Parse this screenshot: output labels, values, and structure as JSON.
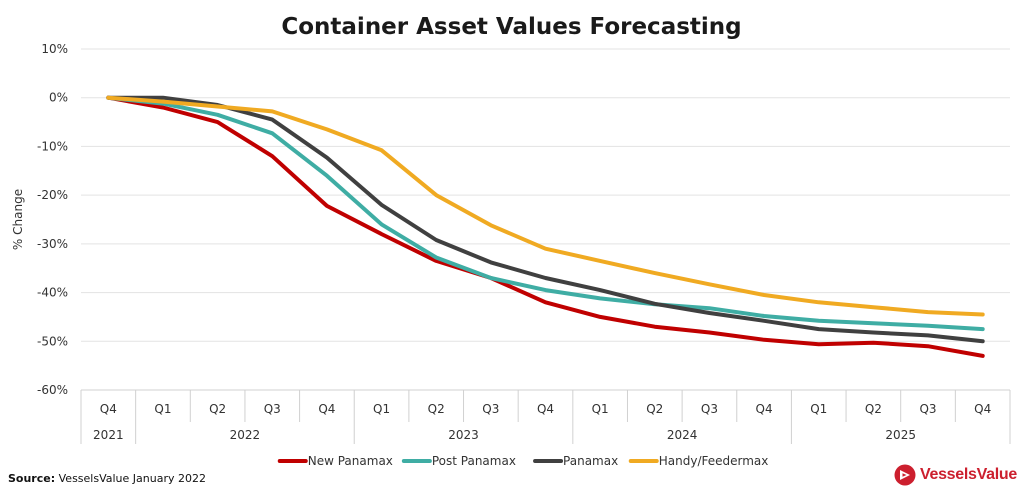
{
  "chart_data": {
    "type": "line",
    "title": "Container Asset Values Forecasting",
    "ylabel": "% Change",
    "xlabel": "",
    "ylim": [
      -60,
      10
    ],
    "y_ticks": [
      10,
      0,
      -10,
      -20,
      -30,
      -40,
      -50,
      -60
    ],
    "y_tick_labels": [
      "10%",
      "0%",
      "-10%",
      "-20%",
      "-30%",
      "-40%",
      "-50%",
      "-60%"
    ],
    "grid": true,
    "legend_position": "bottom",
    "categories": [
      "Q4",
      "Q1",
      "Q2",
      "Q3",
      "Q4",
      "Q1",
      "Q2",
      "Q3",
      "Q4",
      "Q1",
      "Q2",
      "Q3",
      "Q4",
      "Q1",
      "Q2",
      "Q3",
      "Q4"
    ],
    "year_groups": [
      {
        "label": "2021",
        "span": 1
      },
      {
        "label": "2022",
        "span": 4
      },
      {
        "label": "2023",
        "span": 4
      },
      {
        "label": "2024",
        "span": 4
      },
      {
        "label": "2025",
        "span": 4
      }
    ],
    "series": [
      {
        "name": "New Panamax",
        "color": "#c00000",
        "values": [
          0,
          -2,
          -5,
          -12,
          -22.2,
          -28,
          -33.5,
          -37,
          -42,
          -45,
          -47,
          -48.2,
          -49.7,
          -50.6,
          -50.3,
          -51,
          -53
        ]
      },
      {
        "name": "Post Panamax",
        "color": "#3fada4",
        "values": [
          0,
          -1.2,
          -3.5,
          -7.3,
          -16,
          -26,
          -32.8,
          -37,
          -39.5,
          -41.2,
          -42.4,
          -43.2,
          -44.8,
          -45.8,
          -46.3,
          -46.8,
          -47.5
        ]
      },
      {
        "name": "Panamax",
        "color": "#404040",
        "values": [
          0,
          0,
          -1.5,
          -4.5,
          -12.3,
          -22,
          -29.2,
          -33.8,
          -37,
          -39.5,
          -42.3,
          -44.2,
          -45.8,
          -47.5,
          -48.2,
          -48.8,
          -50
        ]
      },
      {
        "name": "Handy/Feedermax",
        "color": "#f0aa22",
        "values": [
          0,
          -0.8,
          -1.8,
          -2.8,
          -6.5,
          -10.8,
          -20,
          -26.2,
          -31,
          -33.5,
          -36,
          -38.3,
          -40.5,
          -42,
          -43,
          -44,
          -44.5
        ]
      }
    ]
  },
  "footer": {
    "source_label": "Source:",
    "source_text": "VesselsValue January 2022",
    "brand": "VesselsValue"
  }
}
